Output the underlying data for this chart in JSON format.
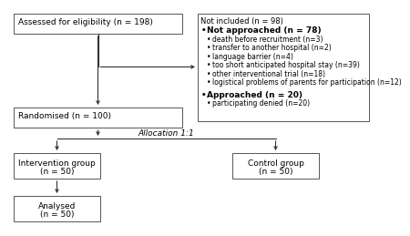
{
  "bg_color": "#ffffff",
  "box_edge_color": "#555555",
  "box_face_color": "#ffffff",
  "not_included_lines": [
    {
      "text": "Not included (n = 98)",
      "bold": false,
      "bullet": false,
      "indent": 0
    },
    {
      "text": "Not approached (n = 78)",
      "bold": true,
      "bullet": true,
      "indent": 0
    },
    {
      "text": "death before recruitment (n=3)",
      "bold": false,
      "bullet": true,
      "indent": 1
    },
    {
      "text": "transfer to another hospital (n=2)",
      "bold": false,
      "bullet": true,
      "indent": 1
    },
    {
      "text": "language barrier (n=4)",
      "bold": false,
      "bullet": true,
      "indent": 1
    },
    {
      "text": "too short anticipated hospital stay (n=39)",
      "bold": false,
      "bullet": true,
      "indent": 1
    },
    {
      "text": "other interventional trial (n=18)",
      "bold": false,
      "bullet": true,
      "indent": 1
    },
    {
      "text": "logistical problems of parents for participation (n=12)",
      "bold": false,
      "bullet": true,
      "indent": 1
    },
    {
      "text": "",
      "bold": false,
      "bullet": false,
      "indent": 0
    },
    {
      "text": "Approached (n = 20)",
      "bold": true,
      "bullet": true,
      "indent": 0
    },
    {
      "text": "participating denied (n=20)",
      "bold": false,
      "bullet": true,
      "indent": 1
    }
  ],
  "allocation_text": "Allocation 1:1"
}
